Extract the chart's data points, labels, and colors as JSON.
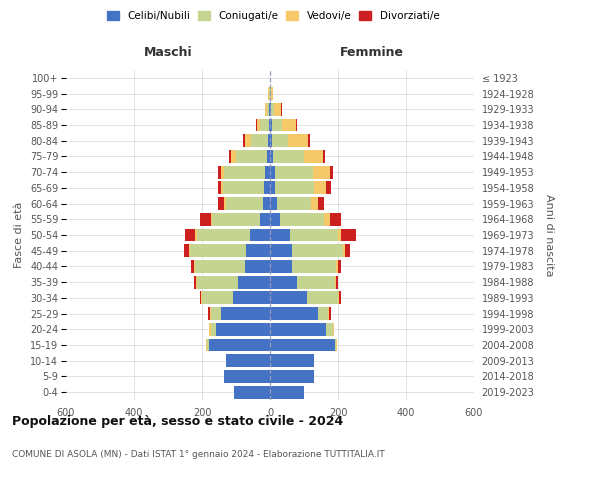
{
  "age_groups": [
    "0-4",
    "5-9",
    "10-14",
    "15-19",
    "20-24",
    "25-29",
    "30-34",
    "35-39",
    "40-44",
    "45-49",
    "50-54",
    "55-59",
    "60-64",
    "65-69",
    "70-74",
    "75-79",
    "80-84",
    "85-89",
    "90-94",
    "95-99",
    "100+"
  ],
  "birth_years": [
    "2019-2023",
    "2014-2018",
    "2009-2013",
    "2004-2008",
    "1999-2003",
    "1994-1998",
    "1989-1993",
    "1984-1988",
    "1979-1983",
    "1974-1978",
    "1969-1973",
    "1964-1968",
    "1959-1963",
    "1954-1958",
    "1949-1953",
    "1944-1948",
    "1939-1943",
    "1934-1938",
    "1929-1933",
    "1924-1928",
    "≤ 1923"
  ],
  "colors": {
    "celibi": "#4472C4",
    "coniugati": "#C5D490",
    "vedovi": "#F5C96A",
    "divorziati": "#CC2020"
  },
  "males": {
    "celibi": [
      105,
      135,
      130,
      180,
      160,
      145,
      110,
      95,
      75,
      70,
      60,
      30,
      20,
      18,
      15,
      10,
      5,
      4,
      2,
      1,
      1
    ],
    "coniugati": [
      0,
      0,
      0,
      5,
      15,
      30,
      90,
      120,
      145,
      165,
      155,
      140,
      110,
      120,
      120,
      90,
      50,
      25,
      8,
      2,
      0
    ],
    "vedovi": [
      0,
      0,
      0,
      2,
      3,
      2,
      2,
      2,
      3,
      3,
      5,
      5,
      4,
      5,
      10,
      15,
      20,
      10,
      5,
      2,
      0
    ],
    "divorziati": [
      0,
      0,
      0,
      0,
      2,
      5,
      5,
      8,
      10,
      15,
      30,
      30,
      20,
      10,
      8,
      5,
      5,
      2,
      0,
      0,
      0
    ]
  },
  "females": {
    "celibi": [
      100,
      130,
      130,
      190,
      165,
      140,
      110,
      80,
      65,
      65,
      60,
      30,
      20,
      15,
      15,
      10,
      5,
      5,
      3,
      1,
      1
    ],
    "coniugati": [
      0,
      0,
      0,
      5,
      20,
      30,
      90,
      110,
      130,
      150,
      140,
      130,
      100,
      115,
      110,
      90,
      48,
      30,
      8,
      2,
      0
    ],
    "vedovi": [
      0,
      0,
      0,
      2,
      2,
      3,
      3,
      3,
      5,
      5,
      10,
      15,
      20,
      35,
      50,
      55,
      60,
      42,
      22,
      5,
      0
    ],
    "divorziati": [
      0,
      0,
      0,
      0,
      2,
      5,
      5,
      8,
      10,
      16,
      42,
      35,
      20,
      15,
      10,
      8,
      5,
      3,
      2,
      0,
      0
    ]
  },
  "title": "Popolazione per età, sesso e stato civile - 2024",
  "subtitle": "COMUNE DI ASOLA (MN) - Dati ISTAT 1° gennaio 2024 - Elaborazione TUTTITALIA.IT",
  "xlabel_left": "Maschi",
  "xlabel_right": "Femmine",
  "ylabel_left": "Fasce di età",
  "ylabel_right": "Anni di nascita",
  "xlim": 600,
  "legend_labels": [
    "Celibi/Nubili",
    "Coniugati/e",
    "Vedovi/e",
    "Divorziati/e"
  ],
  "background_color": "#ffffff",
  "grid_color": "#cccccc"
}
